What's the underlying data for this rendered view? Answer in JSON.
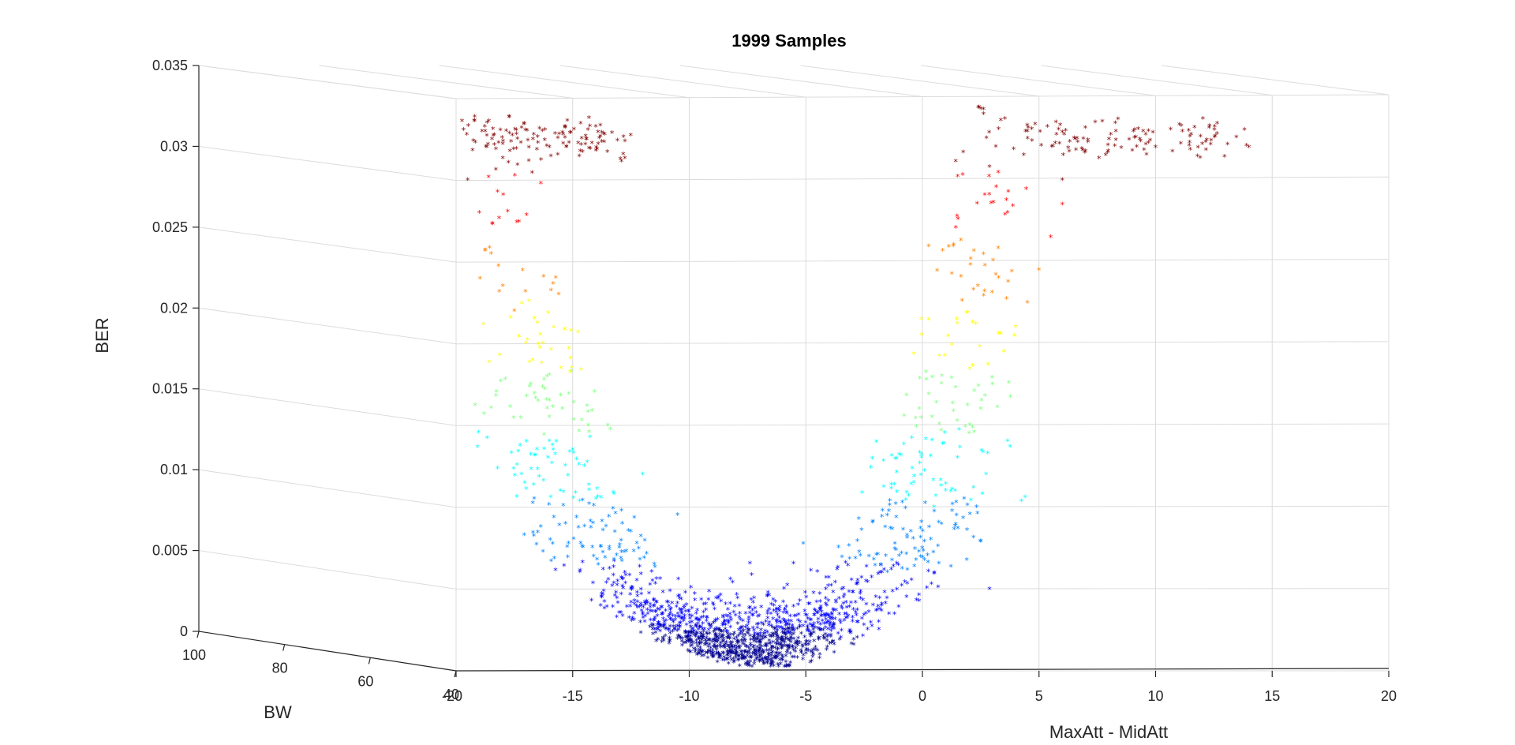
{
  "chart_data": {
    "type": "scatter",
    "title": "1999 Samples",
    "xlabel": "MaxAtt - MidAtt",
    "ylabel": "BW",
    "zlabel": "BER",
    "xlim": [
      -20,
      20
    ],
    "zlim": [
      0,
      0.035
    ],
    "x_ticks": [
      "-20",
      "-15",
      "-10",
      "-5",
      "0",
      "5",
      "10",
      "15",
      "20"
    ],
    "y_ticks": [
      "100",
      "80",
      "60",
      "40"
    ],
    "z_ticks": [
      "0",
      "0.005",
      "0.01",
      "0.015",
      "0.02",
      "0.025",
      "0.03",
      "0.035"
    ],
    "grid": true,
    "marker": "*",
    "colormap": "jet",
    "colormap_colors": [
      "#00008f",
      "#0000ff",
      "#0080ff",
      "#00ffff",
      "#80ff80",
      "#ffff00",
      "#ff8000",
      "#ff0000",
      "#800000"
    ],
    "series": [
      {
        "points_summary": "U-shaped cloud: minimum BER near MaxAtt-MidAtt ≈ -6.5, rising to saturation ≈ 0.032 for x < -15 and x > 4",
        "points": [
          [
            -7.5,
            0.0005
          ],
          [
            -7.0,
            0.0006
          ],
          [
            -6.5,
            0.0004
          ],
          [
            -6.0,
            0.0006
          ],
          [
            -8.0,
            0.0009
          ],
          [
            -5.5,
            0.0008
          ],
          [
            -9.0,
            0.0012
          ],
          [
            -4.5,
            0.0012
          ],
          [
            -10.0,
            0.0018
          ],
          [
            -3.5,
            0.002
          ],
          [
            -11.0,
            0.0025
          ],
          [
            -3.0,
            0.003
          ],
          [
            -12.0,
            0.0035
          ],
          [
            -2.0,
            0.0045
          ],
          [
            -12.5,
            0.005
          ],
          [
            -1.5,
            0.006
          ],
          [
            -11.5,
            0.0065
          ],
          [
            -1.0,
            0.007
          ],
          [
            -13.0,
            0.0075
          ],
          [
            -0.5,
            0.0085
          ],
          [
            -10.5,
            0.0095
          ],
          [
            0.5,
            0.01
          ],
          [
            -14.0,
            0.0105
          ],
          [
            1.0,
            0.011
          ],
          [
            -12.0,
            0.012
          ],
          [
            1.5,
            0.013
          ],
          [
            -15.0,
            0.0135
          ],
          [
            2.0,
            0.0145
          ],
          [
            -13.5,
            0.015
          ],
          [
            2.5,
            0.016
          ],
          [
            -16.0,
            0.0165
          ],
          [
            3.0,
            0.0175
          ],
          [
            -15.5,
            0.0185
          ],
          [
            3.5,
            0.0195
          ],
          [
            -17.0,
            0.02
          ],
          [
            4.0,
            0.021
          ],
          [
            -17.5,
            0.022
          ],
          [
            4.5,
            0.0225
          ],
          [
            -18.0,
            0.0235
          ],
          [
            5.0,
            0.0245
          ],
          [
            -18.5,
            0.0255
          ],
          [
            5.5,
            0.0265
          ],
          [
            -19.0,
            0.028
          ],
          [
            6.0,
            0.0285
          ],
          [
            -19.5,
            0.03
          ],
          [
            6.0,
            0.03
          ],
          [
            -16.0,
            0.032
          ],
          [
            10.0,
            0.032
          ],
          [
            -18.0,
            0.0322
          ],
          [
            12.0,
            0.0322
          ],
          [
            -14.0,
            0.0318
          ],
          [
            14.0,
            0.032
          ],
          [
            8.0,
            0.0325
          ],
          [
            9.0,
            0.0318
          ]
        ]
      }
    ]
  }
}
